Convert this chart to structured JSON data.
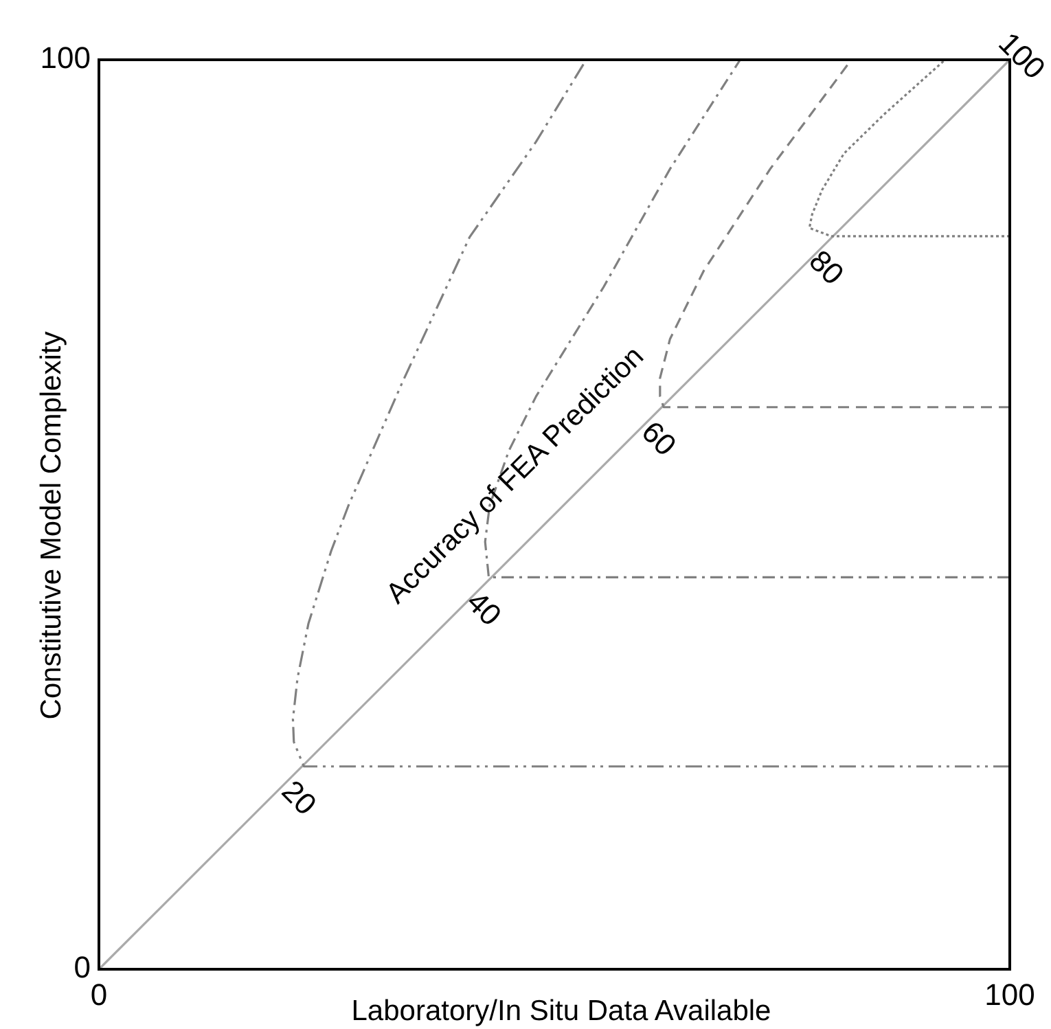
{
  "chart_data": {
    "type": "line",
    "xlabel": "Laboratory/In Situ Data Available",
    "ylabel": "Constitutive Model Complexity",
    "xlim": [
      0,
      100
    ],
    "ylim": [
      0,
      100
    ],
    "xticks": [
      0,
      100
    ],
    "yticks": [
      0,
      100
    ],
    "marker": "none",
    "series": [
      {
        "color": "#aaaaaa",
        "line_style": "solid",
        "x": [
          0,
          100
        ],
        "values": [
          0,
          100
        ]
      },
      {
        "color": "#808080",
        "line_style": "dashdotdot",
        "x": [
          100,
          22.5,
          21.4,
          21.3,
          21.8,
          23,
          25.5,
          27.4,
          33.3,
          40.7,
          48,
          53.5
        ],
        "values": [
          22.3,
          22.3,
          25,
          27.5,
          32,
          38,
          46,
          51,
          64.5,
          80.5,
          91,
          100
        ]
      },
      {
        "color": "#808080",
        "line_style": "dashdot",
        "x": [
          100,
          42.8,
          42.4,
          42.9,
          45,
          48,
          55.4,
          62.7,
          70.4
        ],
        "values": [
          43.1,
          43.1,
          47,
          51,
          57,
          63,
          75,
          88,
          100
        ]
      },
      {
        "color": "#808080",
        "line_style": "dashed",
        "x": [
          100,
          62,
          61.6,
          61.6,
          62.7,
          66.4,
          73.7,
          82.6
        ],
        "values": [
          61.8,
          61.8,
          63,
          65,
          69.3,
          76.8,
          88,
          100
        ]
      },
      {
        "color": "#808080",
        "line_style": "dotted",
        "x": [
          100,
          80.4,
          78,
          78.3,
          79.4,
          81.8,
          86.2,
          92.9
        ],
        "values": [
          80.6,
          80.6,
          81.5,
          83,
          85.7,
          89.7,
          94,
          100
        ]
      }
    ],
    "annotations": [
      {
        "text": "20",
        "x": 22.5,
        "y": 22.3
      },
      {
        "text": "40",
        "x": 42.8,
        "y": 43.1
      },
      {
        "text": "60",
        "x": 62,
        "y": 61.8
      },
      {
        "text": "80",
        "x": 80.4,
        "y": 80.6
      },
      {
        "text": "100",
        "x": 100,
        "y": 100
      },
      {
        "text": "Accuracy of FEA Prediction",
        "x": 50,
        "y": 50
      }
    ]
  }
}
